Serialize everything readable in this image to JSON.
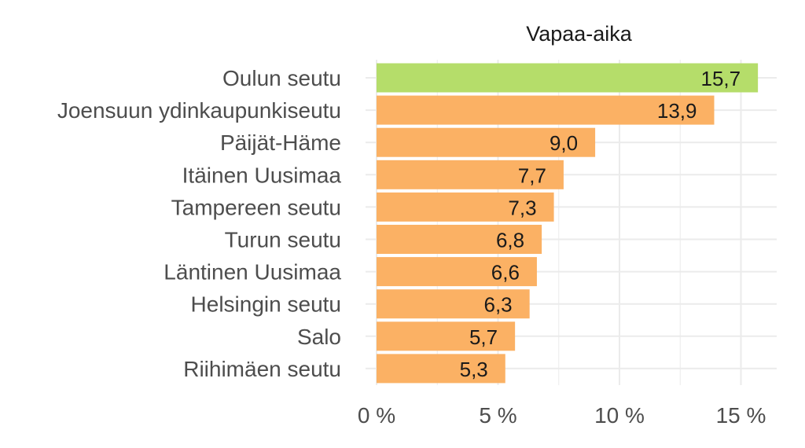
{
  "chart_data": {
    "type": "bar",
    "orientation": "horizontal",
    "title": "Vapaa-aika",
    "xlabel": "",
    "ylabel": "",
    "categories": [
      "Oulun seutu",
      "Joensuun ydinkaupunkiseutu",
      "Päijät-Häme",
      "Itäinen Uusimaa",
      "Tampereen seutu",
      "Turun seutu",
      "Läntinen Uusimaa",
      "Helsingin seutu",
      "Salo",
      "Riihimäen seutu"
    ],
    "values": [
      15.7,
      13.9,
      9.0,
      7.7,
      7.3,
      6.8,
      6.6,
      6.3,
      5.7,
      5.3
    ],
    "value_labels": [
      "15,7",
      "13,9",
      "9,0",
      "7,7",
      "7,3",
      "6,8",
      "6,6",
      "6,3",
      "5,7",
      "5,3"
    ],
    "xlim": [
      0,
      16.5
    ],
    "x_ticks": [
      0,
      5,
      10,
      15
    ],
    "x_tick_labels": [
      "0 %",
      "5 %",
      "10 %",
      "15 %"
    ],
    "grid": true,
    "legend": "none",
    "colors": {
      "highlight": "#b5dd6a",
      "default": "#fbb164"
    },
    "highlight_index": 0
  }
}
